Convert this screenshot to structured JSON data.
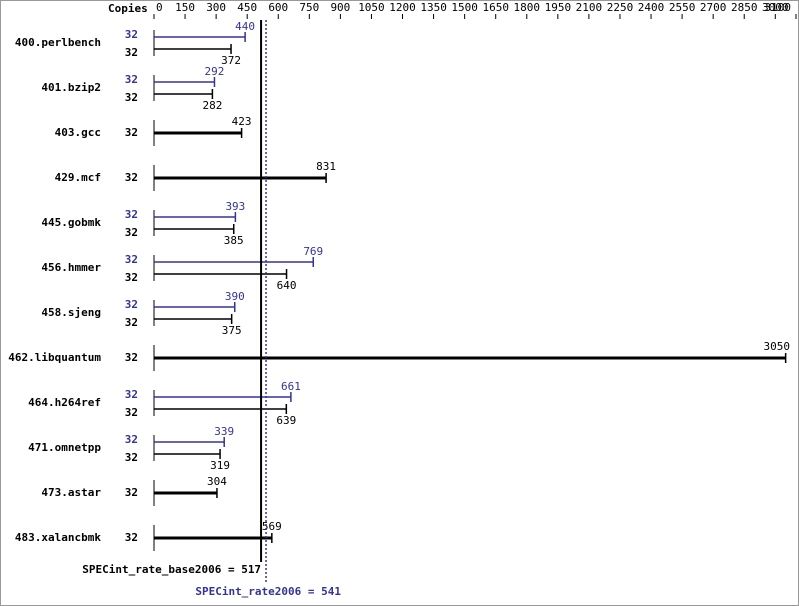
{
  "chart_data": {
    "type": "bar",
    "orientation": "horizontal",
    "copies_label": "Copies",
    "categories": [
      "400.perlbench",
      "401.bzip2",
      "403.gcc",
      "429.mcf",
      "445.gobmk",
      "456.hmmer",
      "458.sjeng",
      "462.libquantum",
      "464.h264ref",
      "471.omnetpp",
      "473.astar",
      "483.xalancbmk"
    ],
    "series": [
      {
        "color": "#333399",
        "copies": [
          32,
          32,
          null,
          null,
          32,
          32,
          32,
          null,
          32,
          32,
          null,
          null
        ],
        "values": [
          440,
          292,
          null,
          null,
          393,
          769,
          390,
          null,
          661,
          339,
          null,
          null
        ]
      },
      {
        "color": "#000000",
        "copies": [
          32,
          32,
          32,
          32,
          32,
          32,
          32,
          32,
          32,
          32,
          32,
          32
        ],
        "values": [
          372,
          282,
          423,
          831,
          385,
          640,
          375,
          3050,
          639,
          319,
          304,
          569
        ]
      }
    ],
    "xlim": [
      0,
      3100
    ],
    "xticks": [
      0,
      150,
      300,
      450,
      600,
      750,
      900,
      1050,
      1200,
      1350,
      1500,
      1650,
      1800,
      1950,
      2100,
      2250,
      2400,
      2550,
      2700,
      2850,
      3000,
      3100
    ],
    "reference_lines": [
      {
        "label": "SPECint_rate_base2006 = 517",
        "value": 517,
        "color": "#000000",
        "style": "solid"
      },
      {
        "label": "SPECint_rate2006 = 541",
        "value": 541,
        "color": "#333399",
        "style": "dotted"
      }
    ]
  }
}
